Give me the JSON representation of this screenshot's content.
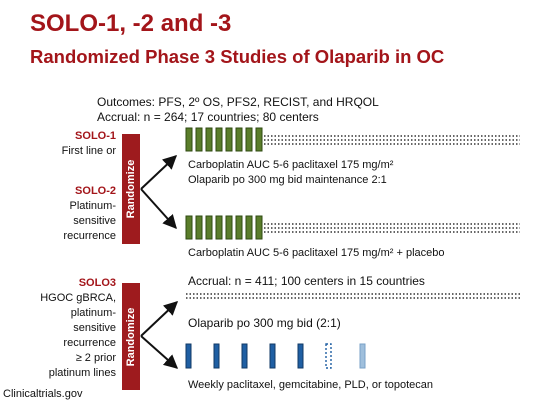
{
  "slide": {
    "title_line1": "SOLO-1, -2 and -3",
    "title_line2": "Randomized Phase 3 Studies of Olaparib in OC",
    "outcomes": "Outcomes: PFS, 2º OS, PFS2, RECIST, and HRQOL",
    "accrual_solo12": "Accrual: n = 264; 17 countries; 80 centers",
    "solo1": {
      "name": "SOLO-1",
      "desc": "First line or"
    },
    "solo2": {
      "name": "SOLO-2",
      "desc_lines": [
        "Platinum-",
        "sensitive",
        "recurrence"
      ]
    },
    "randomize_label": "Randomize",
    "arm_olaparib": {
      "line1": "Carboplatin AUC 5-6 paclitaxel 175 mg/m²",
      "line2": "Olaparib po 300 mg bid maintenance 2:1"
    },
    "arm_placebo": "Carboplatin AUC 5-6 paclitaxel 175 mg/m² + placebo",
    "solo3": {
      "name": "SOLO3",
      "desc_lines": [
        "HGOC gBRCA,",
        "platinum-",
        "sensitive",
        "recurrence",
        "≥ 2 prior",
        "platinum lines"
      ]
    },
    "accrual_solo3": "Accrual: n = 411; 100 centers in 15 countries",
    "arm_solo3_olaparib": "Olaparib po 300 mg bid (2:1)",
    "arm_solo3_chemo": "Weekly paclitaxel, gemcitabine, PLD, or topotecan",
    "source": "Clinicaltrials.gov",
    "colors": {
      "title": "#a3151a",
      "randomize_box": "#9e1b1e",
      "green_cycle": "#5a7d2a",
      "blue_cycle": "#1f5fa3",
      "light_blue_cycle": "#9fbfdc"
    }
  }
}
